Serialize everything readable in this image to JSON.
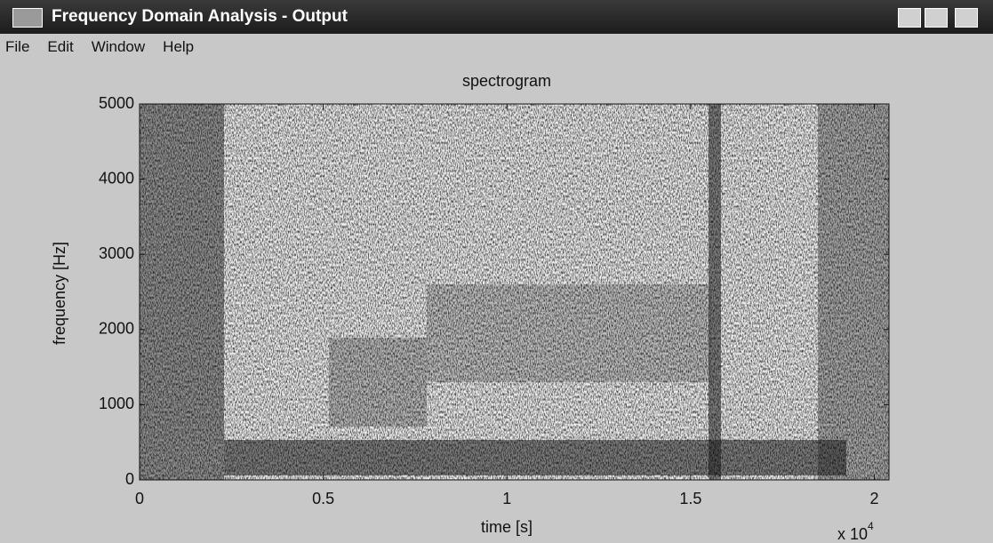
{
  "window": {
    "title": "Frequency Domain Analysis - Output"
  },
  "menu": [
    "File",
    "Edit",
    "Window",
    "Help"
  ],
  "plot": {
    "title": "spectrogram",
    "xlabel": "time [s]",
    "ylabel": "frequency [Hz]",
    "xlim": [
      0,
      2.04
    ],
    "ylim": [
      0,
      5000
    ],
    "xticks": [
      0,
      0.5,
      1,
      1.5,
      2
    ],
    "yticks": [
      0,
      1000,
      2000,
      3000,
      4000,
      5000
    ],
    "x_multiplier": "x 10",
    "x_multiplier_exponent": "4"
  }
}
